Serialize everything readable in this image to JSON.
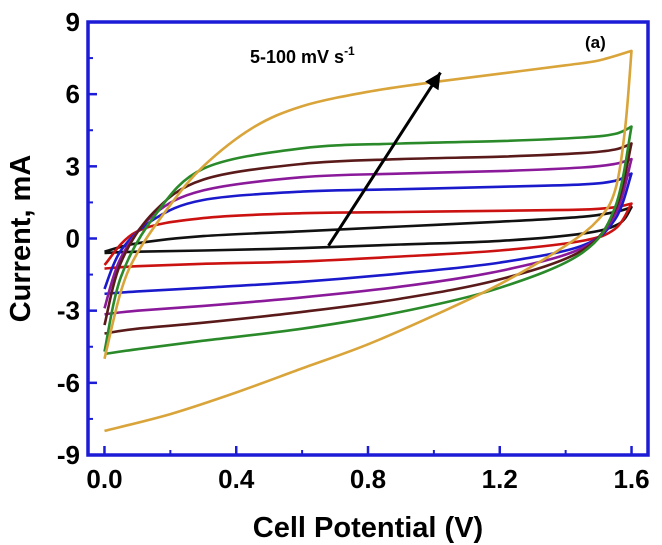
{
  "chart_data": {
    "type": "line",
    "panel_label": "(a)",
    "xlabel": "Cell Potential (V)",
    "ylabel": "Current, mA",
    "xlim": [
      -0.05,
      1.65
    ],
    "ylim": [
      -9,
      9
    ],
    "xticks": [
      0.0,
      0.4,
      0.8,
      1.2,
      1.6
    ],
    "xtick_labels": [
      "0.0",
      "0.4",
      "0.8",
      "1.2",
      "1.6"
    ],
    "yticks": [
      -9,
      -6,
      -3,
      0,
      3,
      6,
      9
    ],
    "ytick_labels": [
      "-9",
      "-6",
      "-3",
      "0",
      "3",
      "6",
      "9"
    ],
    "grid": false,
    "annotation": {
      "text": "5-100 mV s",
      "superscript": "-1",
      "arrow_from": [
        0.68,
        -0.3
      ],
      "arrow_to": [
        1.02,
        6.9
      ]
    },
    "series": [
      {
        "color": "#111111",
        "upper": [
          [
            0.0,
            -0.55
          ],
          [
            0.1,
            -0.2
          ],
          [
            0.3,
            0.1
          ],
          [
            0.6,
            0.3
          ],
          [
            0.9,
            0.5
          ],
          [
            1.2,
            0.7
          ],
          [
            1.45,
            0.9
          ],
          [
            1.55,
            1.1
          ],
          [
            1.6,
            1.3
          ]
        ],
        "lower": [
          [
            1.6,
            1.3
          ],
          [
            1.56,
            0.6
          ],
          [
            1.45,
            0.2
          ],
          [
            1.2,
            -0.1
          ],
          [
            0.9,
            -0.25
          ],
          [
            0.6,
            -0.4
          ],
          [
            0.3,
            -0.5
          ],
          [
            0.1,
            -0.55
          ],
          [
            0.0,
            -0.6
          ]
        ]
      },
      {
        "color": "#cc1111",
        "upper": [
          [
            0.0,
            -1.1
          ],
          [
            0.1,
            0.3
          ],
          [
            0.3,
            0.85
          ],
          [
            0.6,
            1.05
          ],
          [
            0.9,
            1.1
          ],
          [
            1.2,
            1.15
          ],
          [
            1.45,
            1.2
          ],
          [
            1.55,
            1.3
          ],
          [
            1.6,
            1.45
          ]
        ],
        "lower": [
          [
            1.6,
            1.45
          ],
          [
            1.55,
            0.4
          ],
          [
            1.45,
            -0.1
          ],
          [
            1.2,
            -0.5
          ],
          [
            0.9,
            -0.75
          ],
          [
            0.6,
            -0.95
          ],
          [
            0.3,
            -1.05
          ],
          [
            0.1,
            -1.15
          ],
          [
            0.0,
            -1.25
          ]
        ]
      },
      {
        "color": "#1a1acc",
        "upper": [
          [
            0.0,
            -2.1
          ],
          [
            0.05,
            -0.5
          ],
          [
            0.15,
            0.8
          ],
          [
            0.3,
            1.6
          ],
          [
            0.6,
            1.95
          ],
          [
            0.9,
            2.05
          ],
          [
            1.2,
            2.15
          ],
          [
            1.45,
            2.25
          ],
          [
            1.55,
            2.4
          ],
          [
            1.6,
            2.7
          ]
        ],
        "lower": [
          [
            1.6,
            2.7
          ],
          [
            1.55,
            0.8
          ],
          [
            1.45,
            -0.3
          ],
          [
            1.2,
            -1.0
          ],
          [
            0.9,
            -1.45
          ],
          [
            0.6,
            -1.8
          ],
          [
            0.3,
            -2.05
          ],
          [
            0.1,
            -2.2
          ],
          [
            0.0,
            -2.3
          ]
        ]
      },
      {
        "color": "#8b1a9b",
        "upper": [
          [
            0.0,
            -2.9
          ],
          [
            0.05,
            -0.8
          ],
          [
            0.15,
            1.0
          ],
          [
            0.3,
            2.0
          ],
          [
            0.6,
            2.55
          ],
          [
            0.9,
            2.7
          ],
          [
            1.2,
            2.8
          ],
          [
            1.45,
            2.95
          ],
          [
            1.55,
            3.1
          ],
          [
            1.6,
            3.3
          ]
        ],
        "lower": [
          [
            1.6,
            3.3
          ],
          [
            1.55,
            1.0
          ],
          [
            1.45,
            -0.4
          ],
          [
            1.2,
            -1.35
          ],
          [
            0.9,
            -2.0
          ],
          [
            0.6,
            -2.45
          ],
          [
            0.3,
            -2.8
          ],
          [
            0.1,
            -3.0
          ],
          [
            0.0,
            -3.15
          ]
        ]
      },
      {
        "color": "#5a1a1a",
        "upper": [
          [
            0.0,
            -3.6
          ],
          [
            0.05,
            -1.0
          ],
          [
            0.15,
            1.1
          ],
          [
            0.3,
            2.45
          ],
          [
            0.6,
            3.1
          ],
          [
            0.9,
            3.3
          ],
          [
            1.2,
            3.4
          ],
          [
            1.45,
            3.55
          ],
          [
            1.55,
            3.7
          ],
          [
            1.6,
            3.95
          ]
        ],
        "lower": [
          [
            1.6,
            3.95
          ],
          [
            1.55,
            1.2
          ],
          [
            1.45,
            -0.5
          ],
          [
            1.2,
            -1.7
          ],
          [
            0.9,
            -2.5
          ],
          [
            0.6,
            -3.05
          ],
          [
            0.3,
            -3.5
          ],
          [
            0.1,
            -3.75
          ],
          [
            0.0,
            -3.95
          ]
        ]
      },
      {
        "color": "#2a8a2a",
        "upper": [
          [
            0.0,
            -4.7
          ],
          [
            0.05,
            -1.6
          ],
          [
            0.15,
            0.9
          ],
          [
            0.3,
            2.9
          ],
          [
            0.6,
            3.75
          ],
          [
            0.9,
            3.95
          ],
          [
            1.2,
            4.05
          ],
          [
            1.45,
            4.2
          ],
          [
            1.55,
            4.35
          ],
          [
            1.6,
            4.65
          ]
        ],
        "lower": [
          [
            1.6,
            4.65
          ],
          [
            1.55,
            1.3
          ],
          [
            1.45,
            -0.6
          ],
          [
            1.2,
            -2.05
          ],
          [
            0.9,
            -3.05
          ],
          [
            0.6,
            -3.75
          ],
          [
            0.3,
            -4.25
          ],
          [
            0.1,
            -4.6
          ],
          [
            0.0,
            -4.8
          ]
        ]
      },
      {
        "color": "#d9a43a",
        "upper": [
          [
            0.0,
            -5.0
          ],
          [
            0.05,
            -2.2
          ],
          [
            0.1,
            -0.6
          ],
          [
            0.2,
            1.4
          ],
          [
            0.3,
            3.0
          ],
          [
            0.45,
            4.6
          ],
          [
            0.6,
            5.5
          ],
          [
            0.8,
            6.1
          ],
          [
            1.0,
            6.5
          ],
          [
            1.2,
            6.85
          ],
          [
            1.4,
            7.2
          ],
          [
            1.5,
            7.4
          ],
          [
            1.6,
            7.8
          ]
        ],
        "lower": [
          [
            1.6,
            7.8
          ],
          [
            1.58,
            4.5
          ],
          [
            1.55,
            2.0
          ],
          [
            1.5,
            0.8
          ],
          [
            1.4,
            -0.3
          ],
          [
            1.2,
            -1.9
          ],
          [
            1.0,
            -3.2
          ],
          [
            0.8,
            -4.4
          ],
          [
            0.6,
            -5.4
          ],
          [
            0.4,
            -6.4
          ],
          [
            0.2,
            -7.3
          ],
          [
            0.0,
            -8.0
          ]
        ]
      }
    ]
  }
}
